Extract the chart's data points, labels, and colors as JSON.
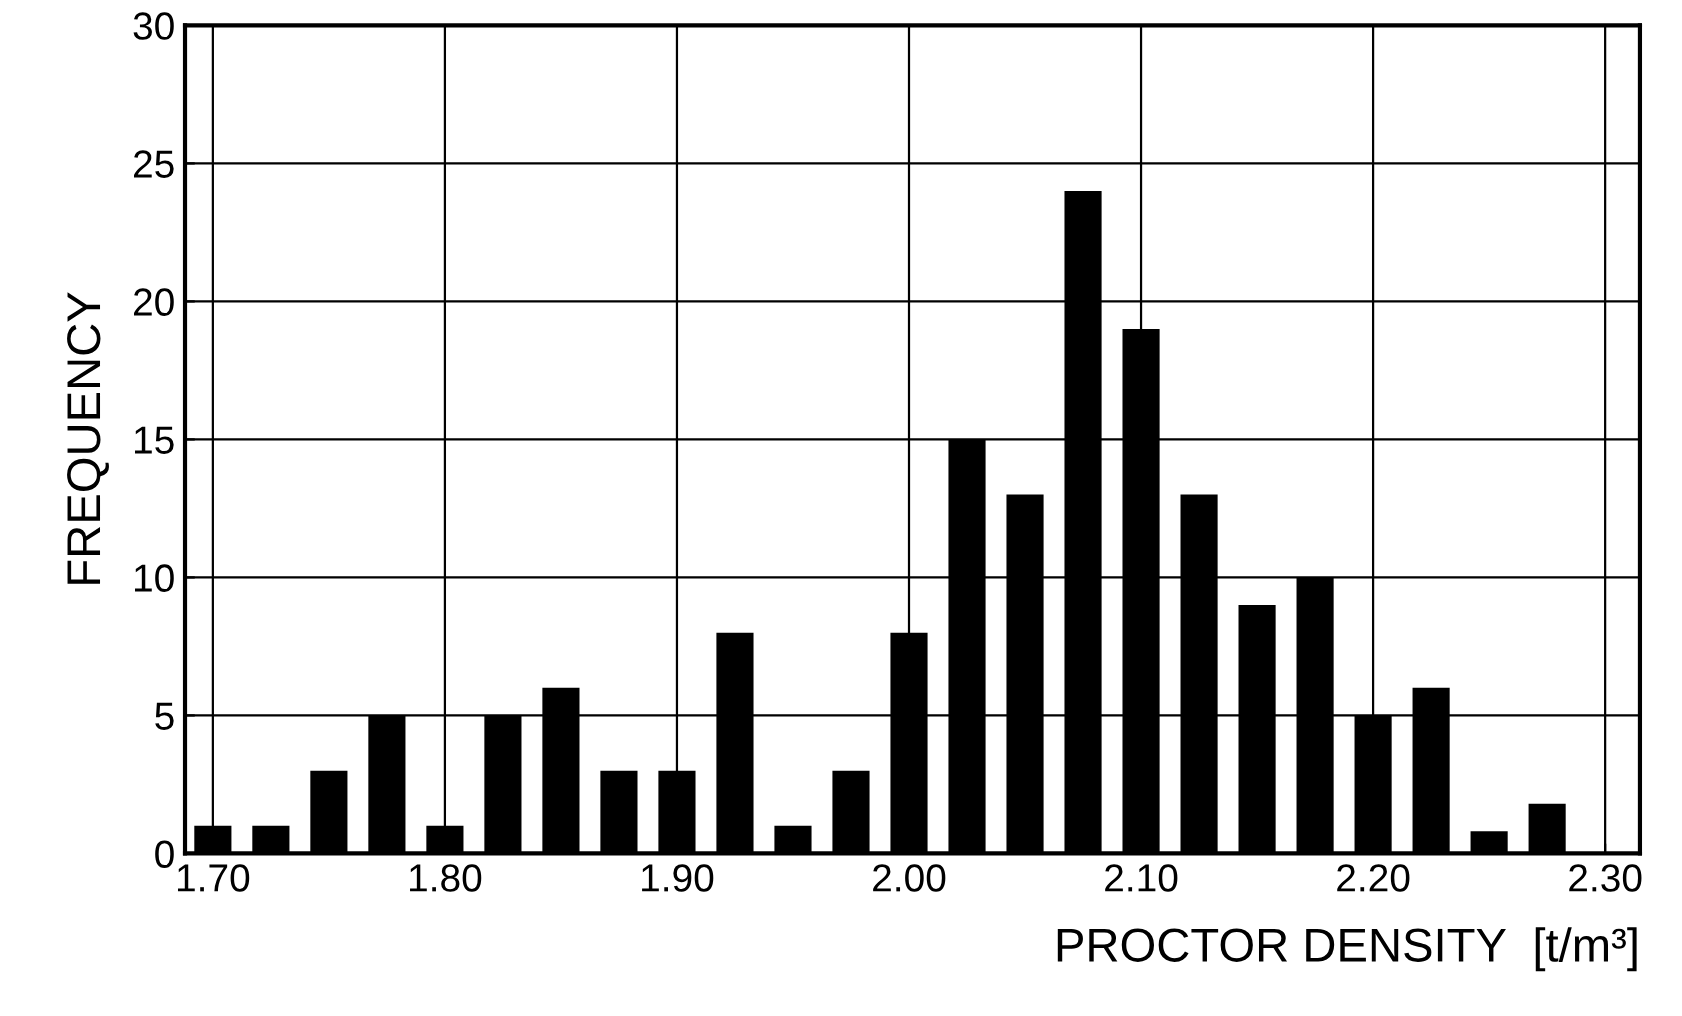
{
  "chart_data": {
    "type": "bar",
    "xlabel": "PROCTOR DENSITY  [t/m³]",
    "ylabel": "FREQUENCY",
    "x": [
      1.7,
      1.725,
      1.75,
      1.775,
      1.8,
      1.825,
      1.85,
      1.875,
      1.9,
      1.925,
      1.95,
      1.975,
      2.0,
      2.025,
      2.05,
      2.075,
      2.1,
      2.125,
      2.15,
      2.175,
      2.2,
      2.225,
      2.25,
      2.275
    ],
    "values": [
      1,
      1,
      3,
      5,
      1,
      5,
      6,
      3,
      3,
      8,
      1,
      3,
      8,
      15,
      13,
      24,
      19,
      13,
      9,
      10,
      5,
      6,
      0.8,
      1.8
    ],
    "color": "#000000",
    "xlim": [
      1.688,
      2.315
    ],
    "xticks": [
      {
        "value": 1.7,
        "label": "1.70"
      },
      {
        "value": 1.8,
        "label": "1.80"
      },
      {
        "value": 1.9,
        "label": "1.90"
      },
      {
        "value": 2.0,
        "label": "2.00"
      },
      {
        "value": 2.1,
        "label": "2.10"
      },
      {
        "value": 2.2,
        "label": "2.20"
      },
      {
        "value": 2.3,
        "label": "2.30"
      }
    ],
    "ylim": [
      0,
      30
    ],
    "yticks": [
      0,
      5,
      10,
      15,
      20,
      25,
      30
    ],
    "grid": true
  }
}
